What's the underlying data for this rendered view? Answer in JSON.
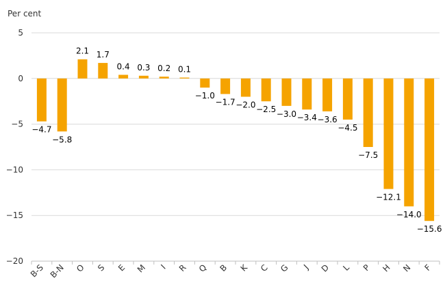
{
  "chart_data": {
    "type": "bar",
    "ylabel": "Per cent",
    "categories": [
      "B-S",
      "B-N",
      "O",
      "S",
      "E",
      "M",
      "I",
      "R",
      "Q",
      "B",
      "K",
      "C",
      "G",
      "J",
      "D",
      "L",
      "P",
      "H",
      "N",
      "F"
    ],
    "values": [
      -4.7,
      -5.8,
      2.1,
      1.7,
      0.4,
      0.3,
      0.2,
      0.1,
      -1.0,
      -1.7,
      -2.0,
      -2.5,
      -3.0,
      -3.4,
      -3.6,
      -4.5,
      -7.5,
      -12.1,
      -14.0,
      -15.6
    ],
    "value_labels": [
      "−4.7",
      "−5.8",
      "2.1",
      "1.7",
      "0.4",
      "0.3",
      "0.2",
      "0.1",
      "−1.0",
      "−1.7",
      "−2.0",
      "−2.5",
      "−3.0",
      "−3.4",
      "−3.6",
      "−4.5",
      "−7.5",
      "−12.1",
      "−14.0",
      "−15.6"
    ],
    "ylim": [
      -20,
      5
    ],
    "yticks": [
      5,
      0,
      -5,
      -10,
      -15,
      -20
    ],
    "ytick_labels": [
      "5",
      "0",
      "−5",
      "−10",
      "−15",
      "−20"
    ],
    "grid": true,
    "legend": "none",
    "colors": {
      "bar": "#F5A300",
      "grid": "#D9D9D9",
      "axis": "#BFBFBF"
    }
  }
}
